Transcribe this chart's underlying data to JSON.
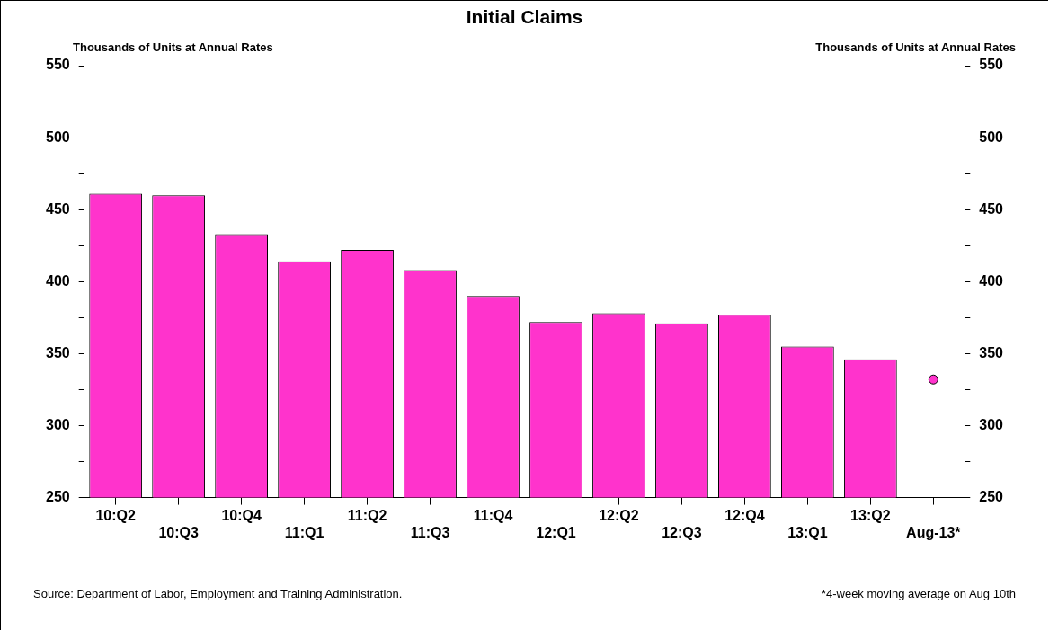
{
  "chart_data": {
    "type": "bar",
    "title": "Initial Claims",
    "ylabel": "Thousands of Units at Annual Rates",
    "y2label": "Thousands of Units at Annual Rates",
    "categories": [
      "10:Q2",
      "10:Q3",
      "10:Q4",
      "11:Q1",
      "11:Q2",
      "11:Q3",
      "11:Q4",
      "12:Q1",
      "12:Q2",
      "12:Q3",
      "12:Q4",
      "13:Q1",
      "13:Q2",
      "Aug-13*"
    ],
    "series": [
      {
        "color": "#ff33cc",
        "values": [
          461,
          460,
          433,
          414,
          422,
          408,
          390,
          372,
          378,
          371,
          377,
          355,
          346,
          null
        ]
      },
      {
        "type": "scatter",
        "color": "#ff33cc",
        "x": [
          "Aug-13*"
        ],
        "values": [
          332
        ]
      }
    ],
    "ylim": [
      250,
      550
    ],
    "yticks": [
      250,
      {
        "value": 275,
        "label": null
      },
      300,
      {
        "value": 325,
        "label": null
      },
      350,
      {
        "value": 375,
        "label": null
      },
      400,
      {
        "value": 425,
        "label": null
      },
      450,
      {
        "value": 475,
        "label": null
      },
      500,
      {
        "value": 525,
        "label": null
      },
      550
    ],
    "y2lim": [
      250,
      550
    ],
    "y2ticks": [
      250,
      {
        "value": 275,
        "label": null
      },
      300,
      {
        "value": 325,
        "label": null
      },
      350,
      {
        "value": 375,
        "label": null
      },
      400,
      {
        "value": 425,
        "label": null
      },
      450,
      {
        "value": 475,
        "label": null
      },
      500,
      {
        "value": 525,
        "label": null
      },
      550
    ],
    "marker": "circle",
    "legend": false,
    "grid": false,
    "annotations": [
      "Source:  Department of Labor, Employment and Training Administration.",
      "*4-week moving average on Aug 10th"
    ]
  }
}
